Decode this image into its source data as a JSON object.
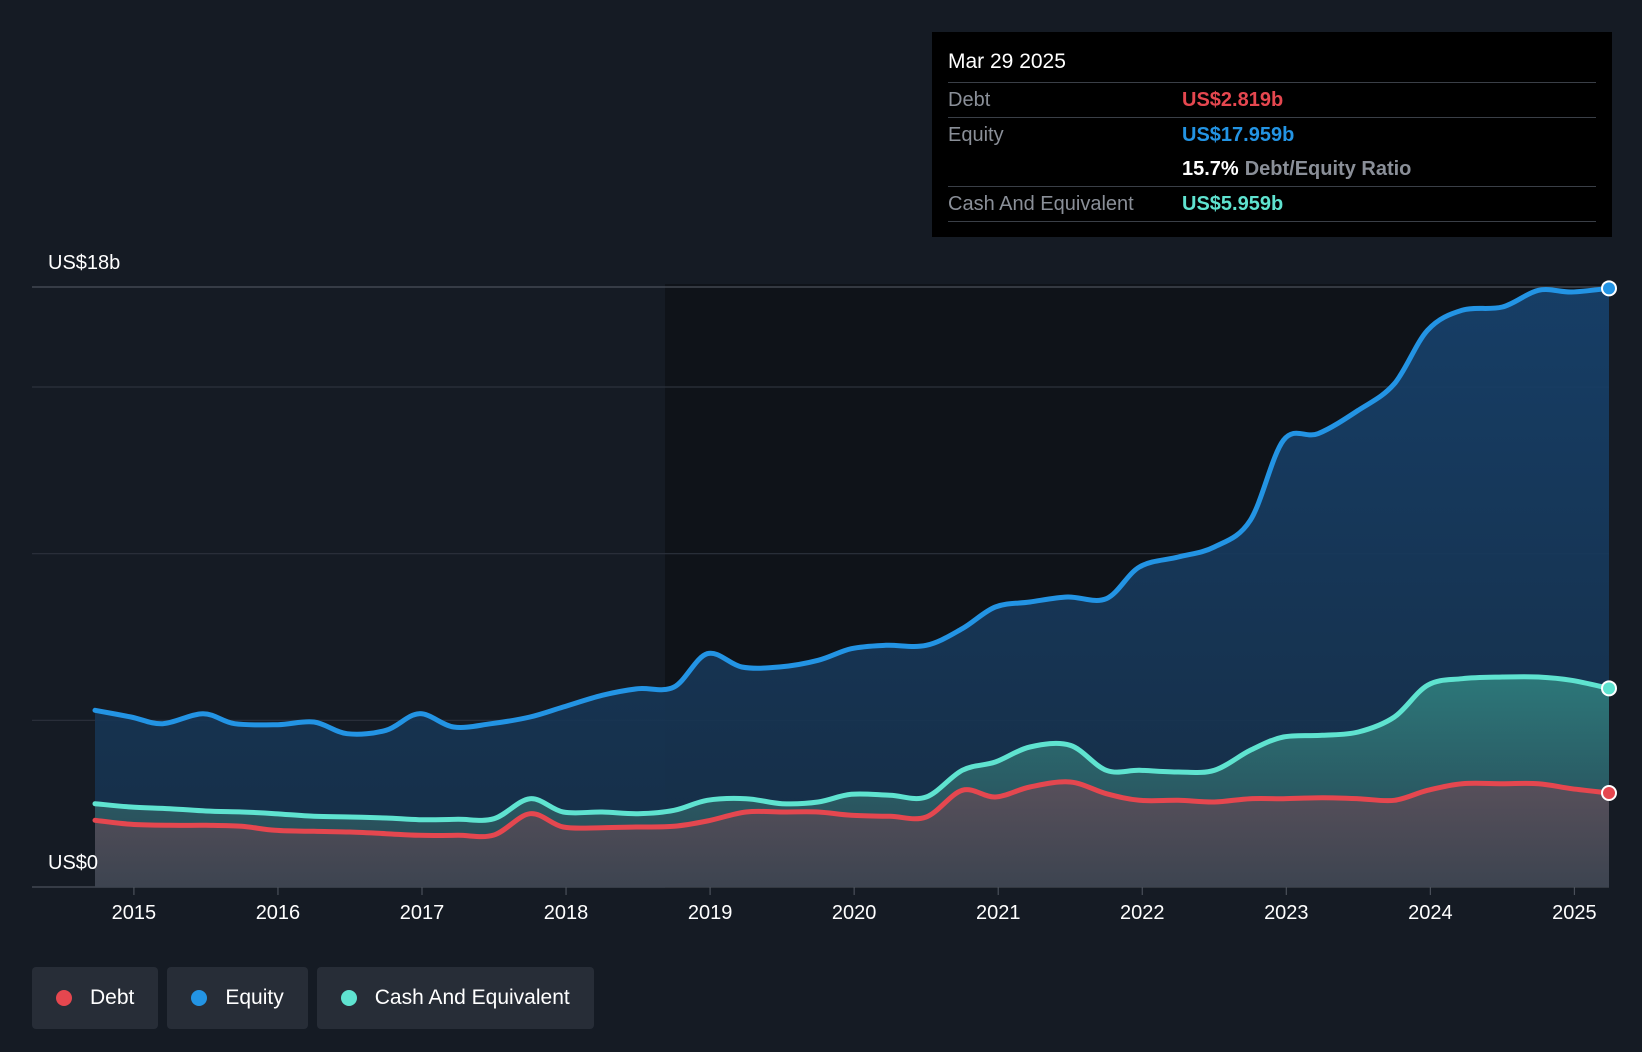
{
  "colors": {
    "background": "#151b24",
    "debt": "#e5474f",
    "equity": "#2394e4",
    "cash": "#5fe3d0",
    "tooltip_bg": "#000000"
  },
  "tooltip": {
    "date": "Mar 29 2025",
    "debt_label": "Debt",
    "debt_value": "US$2.819b",
    "equity_label": "Equity",
    "equity_value": "US$17.959b",
    "ratio_value": "15.7%",
    "ratio_label": "Debt/Equity Ratio",
    "cash_label": "Cash And Equivalent",
    "cash_value": "US$5.959b"
  },
  "legend": {
    "debt": "Debt",
    "equity": "Equity",
    "cash": "Cash And Equivalent"
  },
  "chart_data": {
    "type": "area",
    "title": "",
    "xlabel": "",
    "ylabel": "",
    "ylim": [
      0,
      18
    ],
    "xlim": [
      2014.73,
      2025.24
    ],
    "y_tick_labels": [
      {
        "value": 18,
        "label": "US$18b"
      },
      {
        "value": 0,
        "label": "US$0"
      }
    ],
    "gridlines": [
      18,
      15,
      10,
      5
    ],
    "x_ticks": [
      2015,
      2016,
      2017,
      2018,
      2019,
      2020,
      2021,
      2022,
      2023,
      2024,
      2025
    ],
    "x_tick_labels": [
      "2015",
      "2016",
      "2017",
      "2018",
      "2019",
      "2020",
      "2021",
      "2022",
      "2023",
      "2024",
      "2025"
    ],
    "series": [
      {
        "name": "Equity",
        "unit": "US$b",
        "points": [
          [
            2014.73,
            5.3
          ],
          [
            2014.98,
            5.1
          ],
          [
            2015.2,
            4.9
          ],
          [
            2015.48,
            5.2
          ],
          [
            2015.7,
            4.9
          ],
          [
            2016.0,
            4.87
          ],
          [
            2016.25,
            4.95
          ],
          [
            2016.48,
            4.6
          ],
          [
            2016.75,
            4.7
          ],
          [
            2016.98,
            5.2
          ],
          [
            2017.22,
            4.8
          ],
          [
            2017.48,
            4.9
          ],
          [
            2017.75,
            5.1
          ],
          [
            2017.98,
            5.4
          ],
          [
            2018.25,
            5.75
          ],
          [
            2018.5,
            5.95
          ],
          [
            2018.75,
            6.0
          ],
          [
            2018.98,
            7.0
          ],
          [
            2019.22,
            6.6
          ],
          [
            2019.48,
            6.6
          ],
          [
            2019.75,
            6.8
          ],
          [
            2019.98,
            7.15
          ],
          [
            2020.22,
            7.25
          ],
          [
            2020.5,
            7.25
          ],
          [
            2020.75,
            7.75
          ],
          [
            2020.98,
            8.4
          ],
          [
            2021.22,
            8.55
          ],
          [
            2021.48,
            8.7
          ],
          [
            2021.75,
            8.65
          ],
          [
            2021.98,
            9.6
          ],
          [
            2022.25,
            9.9
          ],
          [
            2022.5,
            10.2
          ],
          [
            2022.75,
            11.0
          ],
          [
            2022.98,
            13.4
          ],
          [
            2023.22,
            13.6
          ],
          [
            2023.5,
            14.3
          ],
          [
            2023.75,
            15.1
          ],
          [
            2023.98,
            16.7
          ],
          [
            2024.22,
            17.3
          ],
          [
            2024.5,
            17.4
          ],
          [
            2024.75,
            17.9
          ],
          [
            2024.98,
            17.85
          ],
          [
            2025.24,
            17.96
          ]
        ]
      },
      {
        "name": "Cash And Equivalent",
        "unit": "US$b",
        "points": [
          [
            2014.73,
            2.5
          ],
          [
            2014.98,
            2.4
          ],
          [
            2015.25,
            2.35
          ],
          [
            2015.5,
            2.28
          ],
          [
            2015.75,
            2.25
          ],
          [
            2015.98,
            2.2
          ],
          [
            2016.25,
            2.12
          ],
          [
            2016.5,
            2.1
          ],
          [
            2016.75,
            2.07
          ],
          [
            2016.98,
            2.02
          ],
          [
            2017.25,
            2.03
          ],
          [
            2017.5,
            2.05
          ],
          [
            2017.75,
            2.65
          ],
          [
            2017.98,
            2.25
          ],
          [
            2018.25,
            2.25
          ],
          [
            2018.5,
            2.2
          ],
          [
            2018.75,
            2.3
          ],
          [
            2018.98,
            2.6
          ],
          [
            2019.25,
            2.65
          ],
          [
            2019.5,
            2.5
          ],
          [
            2019.75,
            2.55
          ],
          [
            2019.98,
            2.78
          ],
          [
            2020.25,
            2.75
          ],
          [
            2020.5,
            2.7
          ],
          [
            2020.75,
            3.5
          ],
          [
            2020.98,
            3.75
          ],
          [
            2021.22,
            4.2
          ],
          [
            2021.5,
            4.25
          ],
          [
            2021.75,
            3.5
          ],
          [
            2021.98,
            3.5
          ],
          [
            2022.25,
            3.45
          ],
          [
            2022.5,
            3.5
          ],
          [
            2022.75,
            4.1
          ],
          [
            2022.98,
            4.5
          ],
          [
            2023.25,
            4.55
          ],
          [
            2023.5,
            4.65
          ],
          [
            2023.75,
            5.1
          ],
          [
            2023.98,
            6.05
          ],
          [
            2024.22,
            6.25
          ],
          [
            2024.5,
            6.3
          ],
          [
            2024.75,
            6.3
          ],
          [
            2024.98,
            6.2
          ],
          [
            2025.24,
            5.96
          ]
        ]
      },
      {
        "name": "Debt",
        "unit": "US$b",
        "points": [
          [
            2014.73,
            2.0
          ],
          [
            2014.98,
            1.88
          ],
          [
            2015.25,
            1.85
          ],
          [
            2015.5,
            1.85
          ],
          [
            2015.75,
            1.82
          ],
          [
            2015.98,
            1.7
          ],
          [
            2016.25,
            1.67
          ],
          [
            2016.5,
            1.65
          ],
          [
            2016.75,
            1.6
          ],
          [
            2016.98,
            1.55
          ],
          [
            2017.25,
            1.55
          ],
          [
            2017.5,
            1.56
          ],
          [
            2017.75,
            2.2
          ],
          [
            2017.98,
            1.8
          ],
          [
            2018.25,
            1.78
          ],
          [
            2018.5,
            1.8
          ],
          [
            2018.75,
            1.82
          ],
          [
            2018.98,
            1.98
          ],
          [
            2019.25,
            2.25
          ],
          [
            2019.5,
            2.25
          ],
          [
            2019.75,
            2.25
          ],
          [
            2019.98,
            2.15
          ],
          [
            2020.25,
            2.12
          ],
          [
            2020.5,
            2.1
          ],
          [
            2020.75,
            2.9
          ],
          [
            2020.98,
            2.7
          ],
          [
            2021.22,
            3.0
          ],
          [
            2021.5,
            3.15
          ],
          [
            2021.75,
            2.8
          ],
          [
            2021.98,
            2.6
          ],
          [
            2022.25,
            2.6
          ],
          [
            2022.5,
            2.55
          ],
          [
            2022.75,
            2.65
          ],
          [
            2022.98,
            2.65
          ],
          [
            2023.25,
            2.68
          ],
          [
            2023.5,
            2.65
          ],
          [
            2023.75,
            2.6
          ],
          [
            2023.98,
            2.9
          ],
          [
            2024.22,
            3.1
          ],
          [
            2024.5,
            3.1
          ],
          [
            2024.75,
            3.1
          ],
          [
            2024.98,
            2.95
          ],
          [
            2025.24,
            2.82
          ]
        ]
      }
    ]
  }
}
